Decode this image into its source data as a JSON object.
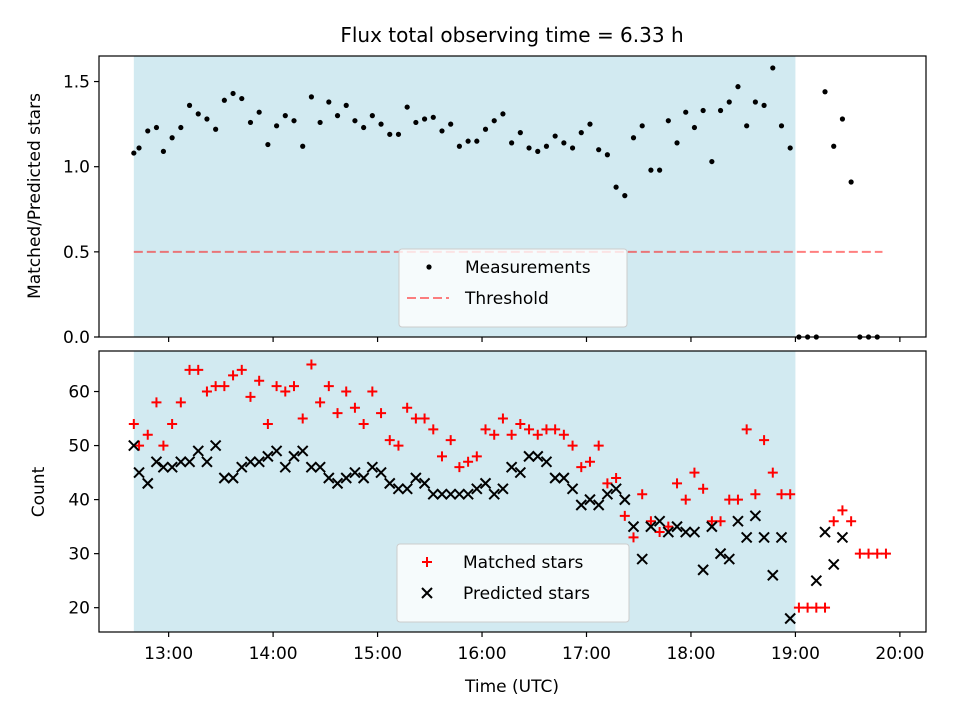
{
  "figure": {
    "title": "Flux total observing time = 6.33 h",
    "shaded_interval": [
      "12:40",
      "19:00"
    ],
    "shade_color": "#add8e6"
  },
  "chart_data": [
    {
      "type": "scatter",
      "ylabel": "Matched/Predicted stars",
      "xlim": [
        "12:20",
        "20:15"
      ],
      "ylim": [
        0,
        1.65
      ],
      "yticks": [
        0.0,
        0.5,
        1.0,
        1.5
      ],
      "ytick_labels": [
        "0.0",
        "0.5",
        "1.0",
        "1.5"
      ],
      "legend": "lower-center",
      "threshold": {
        "name": "Threshold",
        "value": 0.5,
        "color": "#ff0000",
        "x_range": [
          "12:40",
          "19:50"
        ]
      },
      "series": [
        {
          "name": "Measurements",
          "color": "#000000",
          "marker": "dot",
          "points": [
            [
              "12:40",
              1.08
            ],
            [
              "12:43",
              1.11
            ],
            [
              "12:48",
              1.21
            ],
            [
              "12:53",
              1.23
            ],
            [
              "12:57",
              1.09
            ],
            [
              "13:02",
              1.17
            ],
            [
              "13:07",
              1.23
            ],
            [
              "13:12",
              1.36
            ],
            [
              "13:17",
              1.31
            ],
            [
              "13:22",
              1.28
            ],
            [
              "13:27",
              1.22
            ],
            [
              "13:32",
              1.39
            ],
            [
              "13:37",
              1.43
            ],
            [
              "13:42",
              1.4
            ],
            [
              "13:47",
              1.26
            ],
            [
              "13:52",
              1.32
            ],
            [
              "13:57",
              1.13
            ],
            [
              "14:02",
              1.24
            ],
            [
              "14:07",
              1.3
            ],
            [
              "14:12",
              1.27
            ],
            [
              "14:17",
              1.12
            ],
            [
              "14:22",
              1.41
            ],
            [
              "14:27",
              1.26
            ],
            [
              "14:32",
              1.38
            ],
            [
              "14:37",
              1.3
            ],
            [
              "14:42",
              1.36
            ],
            [
              "14:47",
              1.27
            ],
            [
              "14:52",
              1.23
            ],
            [
              "14:57",
              1.3
            ],
            [
              "15:02",
              1.25
            ],
            [
              "15:07",
              1.19
            ],
            [
              "15:12",
              1.19
            ],
            [
              "15:17",
              1.35
            ],
            [
              "15:22",
              1.26
            ],
            [
              "15:27",
              1.28
            ],
            [
              "15:32",
              1.29
            ],
            [
              "15:37",
              1.21
            ],
            [
              "15:42",
              1.25
            ],
            [
              "15:47",
              1.12
            ],
            [
              "15:52",
              1.15
            ],
            [
              "15:57",
              1.15
            ],
            [
              "16:02",
              1.22
            ],
            [
              "16:07",
              1.27
            ],
            [
              "16:12",
              1.31
            ],
            [
              "16:17",
              1.14
            ],
            [
              "16:22",
              1.2
            ],
            [
              "16:27",
              1.11
            ],
            [
              "16:32",
              1.09
            ],
            [
              "16:37",
              1.12
            ],
            [
              "16:42",
              1.18
            ],
            [
              "16:47",
              1.14
            ],
            [
              "16:52",
              1.11
            ],
            [
              "16:57",
              1.2
            ],
            [
              "17:02",
              1.25
            ],
            [
              "17:07",
              1.1
            ],
            [
              "17:12",
              1.07
            ],
            [
              "17:17",
              0.88
            ],
            [
              "17:22",
              0.83
            ],
            [
              "17:27",
              1.17
            ],
            [
              "17:32",
              1.24
            ],
            [
              "17:37",
              0.98
            ],
            [
              "17:42",
              0.98
            ],
            [
              "17:47",
              1.27
            ],
            [
              "17:52",
              1.14
            ],
            [
              "17:57",
              1.32
            ],
            [
              "18:02",
              1.23
            ],
            [
              "18:07",
              1.33
            ],
            [
              "18:12",
              1.03
            ],
            [
              "18:17",
              1.33
            ],
            [
              "18:22",
              1.38
            ],
            [
              "18:27",
              1.47
            ],
            [
              "18:32",
              1.24
            ],
            [
              "18:37",
              1.38
            ],
            [
              "18:42",
              1.36
            ],
            [
              "18:47",
              1.58
            ],
            [
              "18:52",
              1.24
            ],
            [
              "18:57",
              1.11
            ],
            [
              "19:02",
              0.0
            ],
            [
              "19:07",
              0.0
            ],
            [
              "19:12",
              0.0
            ],
            [
              "19:17",
              1.44
            ],
            [
              "19:22",
              1.12
            ],
            [
              "19:27",
              1.28
            ],
            [
              "19:32",
              0.91
            ],
            [
              "19:37",
              0.0
            ],
            [
              "19:42",
              0.0
            ],
            [
              "19:47",
              0.0
            ]
          ]
        }
      ]
    },
    {
      "type": "scatter",
      "xlabel": "Time (UTC)",
      "ylabel": "Count",
      "xlim": [
        "12:20",
        "20:15"
      ],
      "ylim": [
        15.5,
        67.5
      ],
      "xticks": [
        "13:00",
        "14:00",
        "15:00",
        "16:00",
        "17:00",
        "18:00",
        "19:00",
        "20:00"
      ],
      "yticks": [
        20,
        30,
        40,
        50,
        60
      ],
      "ytick_labels": [
        "20",
        "30",
        "40",
        "50",
        "60"
      ],
      "legend": "lower-center",
      "series": [
        {
          "name": "Matched stars",
          "color": "#ff0000",
          "marker": "plus",
          "points": [
            [
              "12:40",
              54
            ],
            [
              "12:43",
              50
            ],
            [
              "12:48",
              52
            ],
            [
              "12:53",
              58
            ],
            [
              "12:57",
              50
            ],
            [
              "13:02",
              54
            ],
            [
              "13:07",
              58
            ],
            [
              "13:12",
              64
            ],
            [
              "13:17",
              64
            ],
            [
              "13:22",
              60
            ],
            [
              "13:27",
              61
            ],
            [
              "13:32",
              61
            ],
            [
              "13:37",
              63
            ],
            [
              "13:42",
              64
            ],
            [
              "13:47",
              59
            ],
            [
              "13:52",
              62
            ],
            [
              "13:57",
              54
            ],
            [
              "14:02",
              61
            ],
            [
              "14:07",
              60
            ],
            [
              "14:12",
              61
            ],
            [
              "14:17",
              55
            ],
            [
              "14:22",
              65
            ],
            [
              "14:27",
              58
            ],
            [
              "14:32",
              61
            ],
            [
              "14:37",
              56
            ],
            [
              "14:42",
              60
            ],
            [
              "14:47",
              57
            ],
            [
              "14:52",
              54
            ],
            [
              "14:57",
              60
            ],
            [
              "15:02",
              56
            ],
            [
              "15:07",
              51
            ],
            [
              "15:12",
              50
            ],
            [
              "15:17",
              57
            ],
            [
              "15:22",
              55
            ],
            [
              "15:27",
              55
            ],
            [
              "15:32",
              53
            ],
            [
              "15:37",
              48
            ],
            [
              "15:42",
              51
            ],
            [
              "15:47",
              46
            ],
            [
              "15:52",
              47
            ],
            [
              "15:57",
              48
            ],
            [
              "16:02",
              53
            ],
            [
              "16:07",
              52
            ],
            [
              "16:12",
              55
            ],
            [
              "16:17",
              52
            ],
            [
              "16:22",
              54
            ],
            [
              "16:27",
              53
            ],
            [
              "16:32",
              52
            ],
            [
              "16:37",
              53
            ],
            [
              "16:42",
              53
            ],
            [
              "16:47",
              52
            ],
            [
              "16:52",
              50
            ],
            [
              "16:57",
              46
            ],
            [
              "17:02",
              47
            ],
            [
              "17:07",
              50
            ],
            [
              "17:12",
              43
            ],
            [
              "17:17",
              44
            ],
            [
              "17:22",
              37
            ],
            [
              "17:27",
              33
            ],
            [
              "17:32",
              41
            ],
            [
              "17:37",
              36
            ],
            [
              "17:42",
              34
            ],
            [
              "17:47",
              35
            ],
            [
              "17:52",
              43
            ],
            [
              "17:57",
              40
            ],
            [
              "18:02",
              45
            ],
            [
              "18:07",
              42
            ],
            [
              "18:12",
              36
            ],
            [
              "18:17",
              36
            ],
            [
              "18:22",
              40
            ],
            [
              "18:27",
              40
            ],
            [
              "18:32",
              53
            ],
            [
              "18:37",
              41
            ],
            [
              "18:42",
              51
            ],
            [
              "18:47",
              45
            ],
            [
              "18:52",
              41
            ],
            [
              "18:57",
              41
            ],
            [
              "19:02",
              20
            ],
            [
              "19:07",
              20
            ],
            [
              "19:12",
              20
            ],
            [
              "19:17",
              20
            ],
            [
              "19:22",
              36
            ],
            [
              "19:27",
              38
            ],
            [
              "19:32",
              36
            ],
            [
              "19:37",
              30
            ],
            [
              "19:42",
              30
            ],
            [
              "19:47",
              30
            ],
            [
              "19:52",
              30
            ]
          ]
        },
        {
          "name": "Predicted stars",
          "color": "#000000",
          "marker": "x",
          "points": [
            [
              "12:40",
              50
            ],
            [
              "12:43",
              45
            ],
            [
              "12:48",
              43
            ],
            [
              "12:53",
              47
            ],
            [
              "12:57",
              46
            ],
            [
              "13:02",
              46
            ],
            [
              "13:07",
              47
            ],
            [
              "13:12",
              47
            ],
            [
              "13:17",
              49
            ],
            [
              "13:22",
              47
            ],
            [
              "13:27",
              50
            ],
            [
              "13:32",
              44
            ],
            [
              "13:37",
              44
            ],
            [
              "13:42",
              46
            ],
            [
              "13:47",
              47
            ],
            [
              "13:52",
              47
            ],
            [
              "13:57",
              48
            ],
            [
              "14:02",
              49
            ],
            [
              "14:07",
              46
            ],
            [
              "14:12",
              48
            ],
            [
              "14:17",
              49
            ],
            [
              "14:22",
              46
            ],
            [
              "14:27",
              46
            ],
            [
              "14:32",
              44
            ],
            [
              "14:37",
              43
            ],
            [
              "14:42",
              44
            ],
            [
              "14:47",
              45
            ],
            [
              "14:52",
              44
            ],
            [
              "14:57",
              46
            ],
            [
              "15:02",
              45
            ],
            [
              "15:07",
              43
            ],
            [
              "15:12",
              42
            ],
            [
              "15:17",
              42
            ],
            [
              "15:22",
              44
            ],
            [
              "15:27",
              43
            ],
            [
              "15:32",
              41
            ],
            [
              "15:37",
              41
            ],
            [
              "15:42",
              41
            ],
            [
              "15:47",
              41
            ],
            [
              "15:52",
              41
            ],
            [
              "15:57",
              42
            ],
            [
              "16:02",
              43
            ],
            [
              "16:07",
              41
            ],
            [
              "16:12",
              42
            ],
            [
              "16:17",
              46
            ],
            [
              "16:22",
              45
            ],
            [
              "16:27",
              48
            ],
            [
              "16:32",
              48
            ],
            [
              "16:37",
              47
            ],
            [
              "16:42",
              44
            ],
            [
              "16:47",
              44
            ],
            [
              "16:52",
              42
            ],
            [
              "16:57",
              39
            ],
            [
              "17:02",
              40
            ],
            [
              "17:07",
              39
            ],
            [
              "17:12",
              41
            ],
            [
              "17:17",
              42
            ],
            [
              "17:22",
              40
            ],
            [
              "17:27",
              35
            ],
            [
              "17:32",
              29
            ],
            [
              "17:37",
              35
            ],
            [
              "17:42",
              36
            ],
            [
              "17:47",
              34
            ],
            [
              "17:52",
              35
            ],
            [
              "17:57",
              34
            ],
            [
              "18:02",
              34
            ],
            [
              "18:07",
              27
            ],
            [
              "18:12",
              35
            ],
            [
              "18:17",
              30
            ],
            [
              "18:22",
              29
            ],
            [
              "18:27",
              36
            ],
            [
              "18:32",
              33
            ],
            [
              "18:37",
              37
            ],
            [
              "18:42",
              33
            ],
            [
              "18:47",
              26
            ],
            [
              "18:52",
              33
            ],
            [
              "18:57",
              18
            ],
            [
              "19:12",
              25
            ],
            [
              "19:17",
              34
            ],
            [
              "19:22",
              28
            ],
            [
              "19:27",
              33
            ]
          ]
        }
      ]
    }
  ]
}
